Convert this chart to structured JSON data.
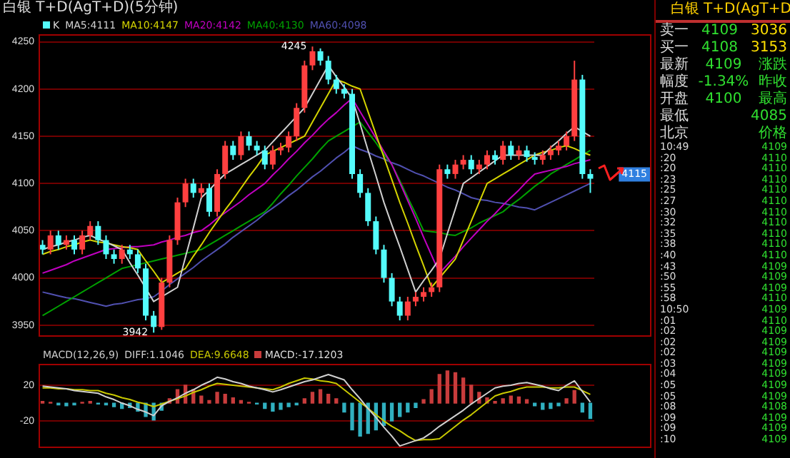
{
  "chart_data": [
    {
      "type": "candlestick",
      "title": "白银 T+D(AgT+D)(5分钟)",
      "grid": "y",
      "tick_labels": "y",
      "marker": "none",
      "categories": [
        null,
        null,
        null,
        null,
        null,
        null,
        null,
        null,
        null,
        null,
        null,
        null,
        null,
        null,
        null,
        null,
        null,
        null,
        null,
        null,
        null,
        null,
        null,
        null,
        null,
        null,
        null,
        null,
        null,
        null,
        null,
        null,
        null,
        null,
        null,
        null,
        null,
        null,
        null,
        null,
        null,
        null,
        null,
        null,
        null,
        null,
        null,
        null,
        null,
        null,
        null,
        null,
        null,
        null,
        null,
        null,
        null,
        null,
        null,
        null,
        null,
        null,
        null,
        null,
        null,
        null,
        null,
        null,
        null,
        null
      ],
      "ylim": [
        3938,
        4258
      ],
      "yticks": [
        3950,
        4000,
        4050,
        4100,
        4150,
        4200,
        4250
      ],
      "series": [
        {
          "name": "K",
          "type": "candlestick",
          "ohlc": [
            [
              4035,
              4040,
              4025,
              4030
            ],
            [
              4030,
              4050,
              4025,
              4045
            ],
            [
              4045,
              4050,
              4030,
              4035
            ],
            [
              4035,
              4045,
              4030,
              4040
            ],
            [
              4040,
              4045,
              4025,
              4030
            ],
            [
              4030,
              4050,
              4025,
              4045
            ],
            [
              4045,
              4060,
              4040,
              4055
            ],
            [
              4055,
              4060,
              4035,
              4040
            ],
            [
              4040,
              4045,
              4020,
              4025
            ],
            [
              4025,
              4030,
              4015,
              4020
            ],
            [
              4020,
              4035,
              4015,
              4030
            ],
            [
              4030,
              4035,
              4020,
              4025
            ],
            [
              4025,
              4030,
              4005,
              4010
            ],
            [
              4010,
              4015,
              3955,
              3960
            ],
            [
              3960,
              3965,
              3942,
              3948
            ],
            [
              3948,
              4000,
              3945,
              3995
            ],
            [
              3995,
              4045,
              3990,
              4040
            ],
            [
              4040,
              4085,
              4035,
              4080
            ],
            [
              4080,
              4105,
              4075,
              4100
            ],
            [
              4100,
              4105,
              4085,
              4090
            ],
            [
              4090,
              4100,
              4085,
              4095
            ],
            [
              4095,
              4100,
              4065,
              4070
            ],
            [
              4070,
              4115,
              4065,
              4110
            ],
            [
              4110,
              4145,
              4105,
              4140
            ],
            [
              4140,
              4145,
              4125,
              4130
            ],
            [
              4130,
              4155,
              4125,
              4150
            ],
            [
              4150,
              4155,
              4135,
              4140
            ],
            [
              4140,
              4145,
              4130,
              4135
            ],
            [
              4135,
              4140,
              4115,
              4120
            ],
            [
              4120,
              4140,
              4115,
              4135
            ],
            [
              4135,
              4143,
              4130,
              4138
            ],
            [
              4138,
              4155,
              4133,
              4150
            ],
            [
              4150,
              4185,
              4145,
              4180
            ],
            [
              4180,
              4230,
              4175,
              4225
            ],
            [
              4225,
              4245,
              4220,
              4240
            ],
            [
              4240,
              4243,
              4225,
              4230
            ],
            [
              4230,
              4235,
              4205,
              4210
            ],
            [
              4210,
              4215,
              4195,
              4200
            ],
            [
              4200,
              4205,
              4190,
              4195
            ],
            [
              4195,
              4200,
              4105,
              4110
            ],
            [
              4110,
              4115,
              4085,
              4090
            ],
            [
              4090,
              4095,
              4055,
              4060
            ],
            [
              4060,
              4065,
              4025,
              4030
            ],
            [
              4030,
              4035,
              3995,
              4000
            ],
            [
              4000,
              4005,
              3970,
              3975
            ],
            [
              3975,
              3980,
              3955,
              3960
            ],
            [
              3960,
              3980,
              3955,
              3975
            ],
            [
              3975,
              3985,
              3970,
              3980
            ],
            [
              3980,
              3990,
              3975,
              3985
            ],
            [
              3985,
              3995,
              3980,
              3990
            ],
            [
              3990,
              4120,
              3985,
              4115
            ],
            [
              4115,
              4120,
              4105,
              4110
            ],
            [
              4110,
              4125,
              4105,
              4120
            ],
            [
              4120,
              4130,
              4115,
              4125
            ],
            [
              4125,
              4130,
              4110,
              4115
            ],
            [
              4115,
              4125,
              4110,
              4120
            ],
            [
              4120,
              4135,
              4115,
              4130
            ],
            [
              4130,
              4135,
              4120,
              4125
            ],
            [
              4125,
              4145,
              4120,
              4140
            ],
            [
              4140,
              4145,
              4125,
              4130
            ],
            [
              4130,
              4140,
              4125,
              4135
            ],
            [
              4135,
              4140,
              4123,
              4128
            ],
            [
              4128,
              4133,
              4120,
              4125
            ],
            [
              4125,
              4135,
              4120,
              4130
            ],
            [
              4130,
              4140,
              4125,
              4135
            ],
            [
              4135,
              4145,
              4130,
              4140
            ],
            [
              4140,
              4155,
              4135,
              4150
            ],
            [
              4150,
              4230,
              4145,
              4210
            ],
            [
              4210,
              4215,
              4105,
              4110
            ],
            [
              4110,
              4115,
              4090,
              4105
            ]
          ],
          "colors": [
            "#54fcfc",
            "#ff4040",
            "#54fcfc",
            "#ff4040",
            "#54fcfc",
            "#ff4040",
            "#ff4040",
            "#54fcfc",
            "#54fcfc",
            "#54fcfc",
            "#ff4040",
            "#54fcfc",
            "#54fcfc",
            "#54fcfc",
            "#54fcfc",
            "#ff4040",
            "#ff4040",
            "#ff4040",
            "#ff4040",
            "#54fcfc",
            "#ff4040",
            "#54fcfc",
            "#ff4040",
            "#ff4040",
            "#54fcfc",
            "#ff4040",
            "#54fcfc",
            "#54fcfc",
            "#54fcfc",
            "#ff4040",
            "#ff4040",
            "#ff4040",
            "#ff4040",
            "#ff4040",
            "#ff4040",
            "#54fcfc",
            "#54fcfc",
            "#54fcfc",
            "#54fcfc",
            "#54fcfc",
            "#54fcfc",
            "#54fcfc",
            "#54fcfc",
            "#54fcfc",
            "#54fcfc",
            "#54fcfc",
            "#ff4040",
            "#ff4040",
            "#ff4040",
            "#ff4040",
            "#ff4040",
            "#54fcfc",
            "#ff4040",
            "#ff4040",
            "#54fcfc",
            "#ff4040",
            "#ff4040",
            "#54fcfc",
            "#ff4040",
            "#54fcfc",
            "#ff4040",
            "#54fcfc",
            "#54fcfc",
            "#ff4040",
            "#ff4040",
            "#ff4040",
            "#ff4040",
            "#ff4040",
            "#54fcfc",
            "#54fcfc"
          ]
        },
        {
          "name": "MA5:4111",
          "type": "line",
          "color": "#d0d0d0",
          "values": [
            4030,
            4033,
            4035,
            4038,
            4040,
            4043,
            4045,
            4041,
            4038,
            4034,
            4030,
            4016,
            4003,
            3989,
            3975,
            3980,
            3985,
            3990,
            4022,
            4053,
            4085,
            4093,
            4102,
            4110,
            4115,
            4120,
            4125,
            4130,
            4135,
            4144,
            4153,
            4162,
            4171,
            4180,
            4195,
            4210,
            4225,
            4213,
            4202,
            4190,
            4163,
            4135,
            4108,
            4080,
            4056,
            4033,
            4009,
            3985,
            3997,
            4008,
            4020,
            4047,
            4073,
            4100,
            4106,
            4112,
            4118,
            4124,
            4130,
            4130,
            4130,
            4130,
            4130,
            4130,
            4138,
            4145,
            4153,
            4160,
            4155,
            4150
          ]
        },
        {
          "name": "MA10:4147",
          "type": "line",
          "color": "#d4d400",
          "values": [
            4025,
            4028,
            4030,
            4033,
            4035,
            4038,
            4040,
            4038,
            4037,
            4035,
            4033,
            4032,
            4030,
            4018,
            4007,
            3995,
            4000,
            4005,
            4010,
            4023,
            4035,
            4048,
            4060,
            4072,
            4083,
            4095,
            4107,
            4118,
            4130,
            4134,
            4138,
            4142,
            4146,
            4150,
            4165,
            4180,
            4195,
            4210,
            4207,
            4203,
            4200,
            4176,
            4152,
            4128,
            4104,
            4080,
            4058,
            4035,
            4013,
            3990,
            4000,
            4010,
            4020,
            4040,
            4060,
            4080,
            4100,
            4105,
            4110,
            4115,
            4120,
            4125,
            4130,
            4133,
            4135,
            4138,
            4140,
            4137,
            4133,
            4130
          ]
        },
        {
          "name": "MA20:4142",
          "type": "line",
          "color": "#c000c0",
          "values": [
            4005,
            4008,
            4011,
            4014,
            4018,
            4021,
            4024,
            4027,
            4030,
            4031,
            4032,
            4033,
            4033,
            4034,
            4035,
            4038,
            4040,
            4043,
            4045,
            4048,
            4050,
            4056,
            4063,
            4069,
            4075,
            4081,
            4088,
            4094,
            4100,
            4109,
            4117,
            4126,
            4134,
            4143,
            4151,
            4160,
            4168,
            4175,
            4183,
            4190,
            4176,
            4162,
            4148,
            4134,
            4120,
            4101,
            4082,
            4063,
            4043,
            4024,
            4005,
            4014,
            4023,
            4033,
            4042,
            4051,
            4060,
            4068,
            4077,
            4085,
            4093,
            4102,
            4110,
            4112,
            4114,
            4116,
            4118,
            4121,
            4123,
            4125
          ]
        },
        {
          "name": "MA40:4130",
          "type": "line",
          "color": "#00a000",
          "values": [
            3960,
            3965,
            3970,
            3975,
            3980,
            3985,
            3990,
            3995,
            4000,
            4005,
            4010,
            4012,
            4014,
            4016,
            4018,
            4020,
            4022,
            4024,
            4026,
            4028,
            4030,
            4035,
            4040,
            4045,
            4050,
            4055,
            4060,
            4065,
            4070,
            4079,
            4089,
            4098,
            4108,
            4117,
            4126,
            4136,
            4145,
            4150,
            4155,
            4160,
            4165,
            4154,
            4143,
            4131,
            4120,
            4103,
            4085,
            4068,
            4050,
            4049,
            4048,
            4046,
            4045,
            4049,
            4053,
            4058,
            4062,
            4066,
            4070,
            4077,
            4083,
            4090,
            4097,
            4103,
            4110,
            4115,
            4120,
            4125,
            4130,
            4135
          ]
        },
        {
          "name": "MA60:4098",
          "type": "line",
          "color": "#5050b0",
          "values": [
            3985,
            3983,
            3981,
            3979,
            3978,
            3976,
            3974,
            3972,
            3970,
            3972,
            3973,
            3975,
            3977,
            3978,
            3980,
            3986,
            3993,
            3999,
            4005,
            4011,
            4018,
            4024,
            4030,
            4036,
            4043,
            4049,
            4055,
            4061,
            4068,
            4074,
            4080,
            4087,
            4093,
            4100,
            4107,
            4113,
            4120,
            4127,
            4133,
            4140,
            4136,
            4133,
            4129,
            4126,
            4122,
            4119,
            4115,
            4111,
            4108,
            4104,
            4100,
            4096,
            4093,
            4089,
            4085,
            4083,
            4082,
            4080,
            4079,
            4077,
            4075,
            4074,
            4072,
            4076,
            4080,
            4084,
            4088,
            4092,
            4096,
            4100
          ]
        }
      ],
      "annotations": [
        "4245",
        "3942",
        "4115"
      ]
    },
    {
      "type": "bar",
      "title": "MACD(12,26,9)",
      "grid": "y",
      "tick_labels": "y",
      "marker": "none",
      "categories": [
        null,
        null,
        null,
        null,
        null,
        null,
        null,
        null,
        null,
        null,
        null,
        null,
        null,
        null,
        null,
        null,
        null,
        null,
        null,
        null,
        null,
        null,
        null,
        null,
        null,
        null,
        null,
        null,
        null,
        null,
        null,
        null,
        null,
        null,
        null,
        null,
        null,
        null,
        null,
        null,
        null,
        null,
        null,
        null,
        null,
        null,
        null,
        null,
        null,
        null,
        null,
        null,
        null,
        null,
        null,
        null,
        null,
        null,
        null,
        null,
        null,
        null,
        null,
        null,
        null,
        null,
        null,
        null,
        null,
        null
      ],
      "ylim": [
        -50,
        44
      ],
      "yticks": [
        20,
        -20
      ],
      "series": [
        {
          "name": "DIFF:1.1046",
          "type": "line",
          "color": "#d0d0d0",
          "values": [
            19,
            18,
            17,
            16,
            14,
            13,
            12,
            11,
            7,
            4,
            0,
            -3,
            -7,
            -10,
            -14,
            -3,
            2,
            6,
            11,
            15,
            20,
            24,
            29,
            27,
            24,
            22,
            19,
            17,
            15,
            12.5,
            15,
            18,
            21,
            24,
            26,
            29,
            32,
            29,
            26,
            15,
            5,
            -6,
            -16,
            -27,
            -37,
            -48,
            -45,
            -42,
            -39,
            -33,
            -26,
            -20,
            -14,
            -8,
            -1,
            5,
            11,
            17,
            19,
            20,
            22,
            23,
            21,
            19,
            16,
            14,
            20,
            25,
            13,
            1.1046
          ]
        },
        {
          "name": "DEA:9.6648",
          "type": "line",
          "color": "#c8c800",
          "values": [
            17,
            17,
            16,
            16,
            15,
            15,
            14,
            14,
            11,
            9,
            6,
            4,
            1,
            -1,
            -4,
            -1,
            2,
            5,
            8,
            12,
            15,
            19,
            22,
            21,
            20,
            19,
            18,
            17,
            16,
            15,
            18,
            22,
            25,
            28,
            27,
            25,
            24,
            22,
            15,
            8,
            1,
            -6,
            -13,
            -20,
            -26,
            -31,
            -37,
            -42,
            -41,
            -41,
            -40,
            -33,
            -26,
            -19,
            -13,
            -6,
            1,
            8,
            11,
            13,
            16,
            18,
            18,
            18,
            17,
            17,
            18,
            18,
            14,
            9.6648
          ]
        },
        {
          "name": "MACD:-17.1203",
          "type": "bar",
          "values": [
            2,
            1,
            -2,
            -3,
            -2,
            1,
            2,
            -1,
            -2,
            -4,
            -6,
            -5,
            -9,
            -15,
            -19,
            -8,
            5,
            15,
            20,
            15,
            8,
            3,
            12,
            10,
            6,
            3,
            1,
            -1,
            -6,
            -9,
            -7,
            -4,
            -2,
            5,
            12,
            15,
            10,
            5,
            -10,
            -30,
            -37,
            -34,
            -30,
            -25,
            -20,
            -15,
            -10,
            -5,
            4,
            15,
            32,
            36,
            34,
            28,
            20,
            12,
            6,
            2,
            5,
            8,
            7,
            4,
            -3,
            -7,
            -6,
            -3,
            5,
            14,
            -10,
            -17.1203
          ],
          "colors": [
            "#c83c3c",
            "#c83c3c",
            "#30b0c0",
            "#30b0c0",
            "#30b0c0",
            "#c83c3c",
            "#c83c3c",
            "#30b0c0",
            "#30b0c0",
            "#30b0c0",
            "#30b0c0",
            "#30b0c0",
            "#30b0c0",
            "#30b0c0",
            "#30b0c0",
            "#30b0c0",
            "#c83c3c",
            "#c83c3c",
            "#c83c3c",
            "#c83c3c",
            "#c83c3c",
            "#c83c3c",
            "#c83c3c",
            "#c83c3c",
            "#c83c3c",
            "#c83c3c",
            "#c83c3c",
            "#30b0c0",
            "#30b0c0",
            "#30b0c0",
            "#30b0c0",
            "#30b0c0",
            "#30b0c0",
            "#c83c3c",
            "#c83c3c",
            "#c83c3c",
            "#c83c3c",
            "#c83c3c",
            "#30b0c0",
            "#30b0c0",
            "#30b0c0",
            "#30b0c0",
            "#30b0c0",
            "#30b0c0",
            "#30b0c0",
            "#30b0c0",
            "#30b0c0",
            "#30b0c0",
            "#c83c3c",
            "#c83c3c",
            "#c83c3c",
            "#c83c3c",
            "#c83c3c",
            "#c83c3c",
            "#c83c3c",
            "#c83c3c",
            "#c83c3c",
            "#c83c3c",
            "#c83c3c",
            "#c83c3c",
            "#c83c3c",
            "#c83c3c",
            "#30b0c0",
            "#30b0c0",
            "#30b0c0",
            "#30b0c0",
            "#c83c3c",
            "#c83c3c",
            "#30b0c0",
            "#30b0c0"
          ]
        }
      ]
    },
    {
      "type": "other",
      "title": "白银 T+D(AgT+D",
      "annotations": [
        "卖一 4109 3036",
        "买一 4108 3153",
        "最新 4109 涨跌",
        "幅度 -1.34% 昨收",
        "开盘 4100 最高",
        "最低 4085",
        "北京 价格",
        "10:49 4109",
        ":20 4110",
        ":20 4110",
        ":23 4110",
        ":25 4110",
        ":27 4110",
        ":30 4110",
        ":32 4110",
        ":35 4110",
        ":38 4110",
        ":40 4110",
        ":43 4109",
        ":50 4109",
        ":55 4109",
        ":58 4110",
        "10:50 4109",
        ":01 4110",
        ":02 4109",
        ":02 4109",
        ":02 4109",
        ":03 4109",
        ":04 4109",
        ":05 4109",
        ":05 4109",
        ":08 4108",
        ":09 4109",
        ":09 4109",
        ":10 4109"
      ]
    }
  ]
}
